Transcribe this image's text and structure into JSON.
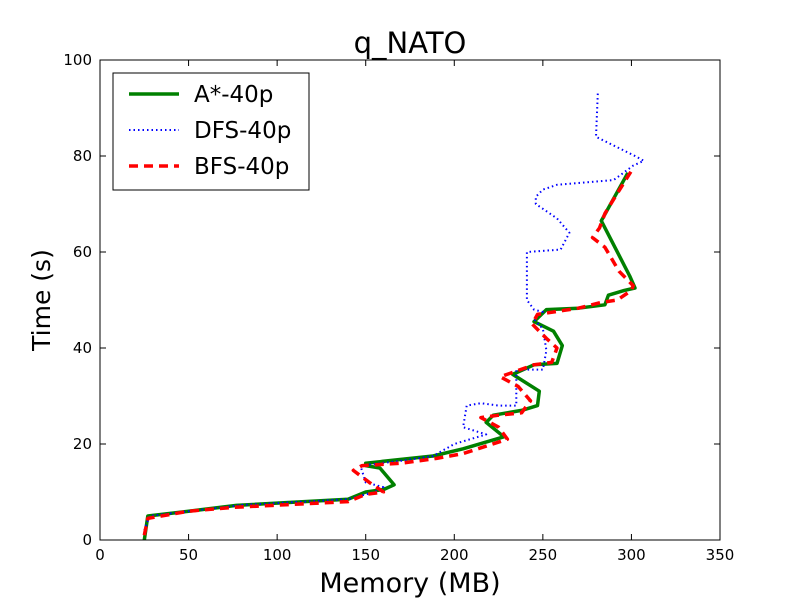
{
  "chart_data": {
    "type": "line",
    "title": "q_NATO",
    "xlabel": "Memory (MB)",
    "ylabel": "Time (s)",
    "xlim": [
      0,
      350
    ],
    "ylim": [
      0,
      100
    ],
    "xticks": [
      0,
      50,
      100,
      150,
      200,
      250,
      300,
      350
    ],
    "yticks": [
      0,
      20,
      40,
      60,
      80,
      100
    ],
    "grid": false,
    "legend_position": "top-left",
    "series": [
      {
        "name": "A*-40p",
        "color": "#008000",
        "style": "solid",
        "points": [
          [
            25,
            0
          ],
          [
            27,
            5
          ],
          [
            50,
            6
          ],
          [
            77,
            7.2
          ],
          [
            140,
            8.5
          ],
          [
            150,
            10
          ],
          [
            160,
            10.5
          ],
          [
            166,
            11.5
          ],
          [
            158,
            15
          ],
          [
            150,
            15.5
          ],
          [
            150,
            16
          ],
          [
            170,
            16.8
          ],
          [
            188,
            17.5
          ],
          [
            205,
            19
          ],
          [
            228,
            21.5
          ],
          [
            218,
            24.5
          ],
          [
            222,
            26
          ],
          [
            238,
            27
          ],
          [
            247,
            28
          ],
          [
            248,
            31
          ],
          [
            233,
            34.5
          ],
          [
            245,
            36.5
          ],
          [
            258,
            36.8
          ],
          [
            261,
            40.5
          ],
          [
            256,
            43.5
          ],
          [
            245,
            45.5
          ],
          [
            252,
            48
          ],
          [
            270,
            48.3
          ],
          [
            285,
            49
          ],
          [
            287,
            51
          ],
          [
            296,
            52
          ],
          [
            302,
            52.5
          ],
          [
            299,
            55
          ],
          [
            283,
            66.5
          ],
          [
            298,
            76.5
          ]
        ]
      },
      {
        "name": "DFS-40p",
        "color": "#0000ff",
        "style": "dotted",
        "points": [
          [
            25,
            2
          ],
          [
            28,
            5
          ],
          [
            50,
            6
          ],
          [
            80,
            7.3
          ],
          [
            140,
            8.5
          ],
          [
            155,
            10
          ],
          [
            160,
            11
          ],
          [
            150,
            12
          ],
          [
            147,
            15.5
          ],
          [
            170,
            16.5
          ],
          [
            188,
            17.5
          ],
          [
            200,
            20
          ],
          [
            218,
            22
          ],
          [
            205,
            23.5
          ],
          [
            207,
            28
          ],
          [
            215,
            28.5
          ],
          [
            225,
            28
          ],
          [
            235,
            28
          ],
          [
            235,
            35.5
          ],
          [
            250,
            35.5
          ],
          [
            252,
            39.5
          ],
          [
            250,
            44
          ],
          [
            245,
            46
          ],
          [
            250,
            47.5
          ],
          [
            245,
            48
          ],
          [
            241,
            50
          ],
          [
            241,
            60
          ],
          [
            260,
            60.5
          ],
          [
            265,
            64
          ],
          [
            258,
            67
          ],
          [
            254,
            68
          ],
          [
            246,
            70
          ],
          [
            246,
            71.5
          ],
          [
            250,
            73
          ],
          [
            258,
            74
          ],
          [
            290,
            75
          ],
          [
            301,
            78
          ],
          [
            307,
            79
          ],
          [
            302,
            80
          ],
          [
            280,
            84
          ],
          [
            281,
            93
          ]
        ]
      },
      {
        "name": "BFS-40p",
        "color": "#ff0000",
        "style": "dashed",
        "points": [
          [
            25,
            1
          ],
          [
            27,
            4.5
          ],
          [
            50,
            6
          ],
          [
            75,
            6.8
          ],
          [
            140,
            8
          ],
          [
            150,
            9.5
          ],
          [
            160,
            10
          ],
          [
            152,
            12
          ],
          [
            143,
            14.5
          ],
          [
            148,
            15.5
          ],
          [
            170,
            16
          ],
          [
            190,
            17
          ],
          [
            205,
            18
          ],
          [
            230,
            21
          ],
          [
            225,
            23.5
          ],
          [
            215,
            25.5
          ],
          [
            225,
            26
          ],
          [
            238,
            26.5
          ],
          [
            243,
            29
          ],
          [
            236,
            32
          ],
          [
            226,
            34
          ],
          [
            245,
            36.5
          ],
          [
            255,
            37
          ],
          [
            258,
            40
          ],
          [
            252,
            42
          ],
          [
            244,
            45
          ],
          [
            247,
            47
          ],
          [
            270,
            48.3
          ],
          [
            283,
            49.5
          ],
          [
            292,
            50
          ],
          [
            300,
            52
          ],
          [
            301,
            53
          ],
          [
            293,
            56
          ],
          [
            285,
            61
          ],
          [
            278,
            63
          ],
          [
            282,
            65
          ],
          [
            285,
            68
          ],
          [
            290,
            71
          ],
          [
            301,
            77.5
          ]
        ]
      }
    ]
  }
}
